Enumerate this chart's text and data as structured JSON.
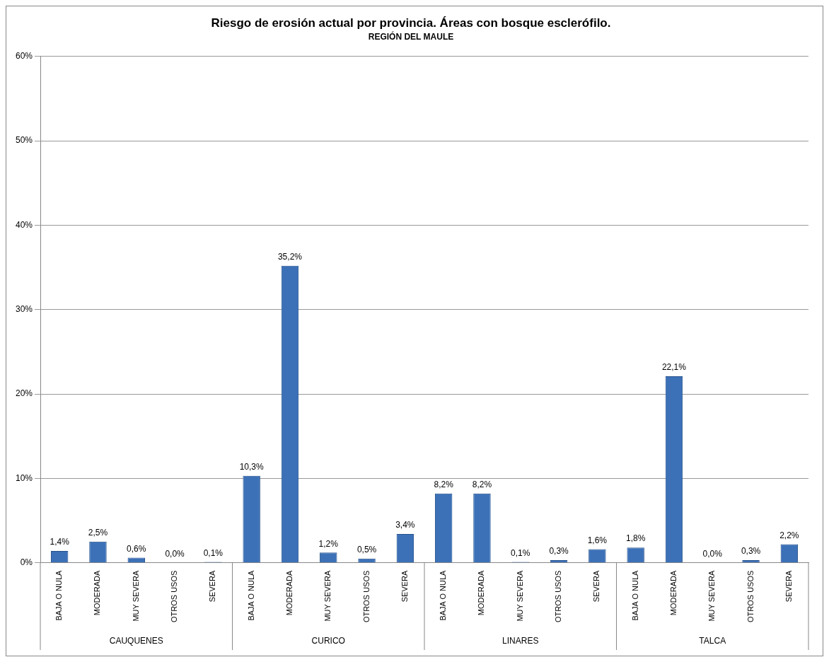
{
  "chart_data": {
    "type": "bar",
    "title": "Riesgo de erosión actual por provincia. Áreas con bosque esclerófilo.",
    "subtitle": "REGIÓN DEL MAULE",
    "categories": [
      "BAJA O NULA",
      "MODERADA",
      "MUY SEVERA",
      "OTROS USOS",
      "SEVERA",
      "BAJA O NULA",
      "MODERADA",
      "MUY SEVERA",
      "OTROS USOS",
      "SEVERA",
      "BAJA O NULA",
      "MODERADA",
      "MUY SEVERA",
      "OTROS USOS",
      "SEVERA",
      "BAJA O NULA",
      "MODERADA",
      "MUY SEVERA",
      "OTROS USOS",
      "SEVERA"
    ],
    "values": [
      1.4,
      2.5,
      0.6,
      0.0,
      0.1,
      10.3,
      35.2,
      1.2,
      0.5,
      3.4,
      8.2,
      8.2,
      0.1,
      0.3,
      1.6,
      1.8,
      22.1,
      0.0,
      0.3,
      2.2
    ],
    "value_labels": [
      "1,4%",
      "2,5%",
      "0,6%",
      "0,0%",
      "0,1%",
      "10,3%",
      "35,2%",
      "1,2%",
      "0,5%",
      "3,4%",
      "8,2%",
      "8,2%",
      "0,1%",
      "0,3%",
      "1,6%",
      "1,8%",
      "22,1%",
      "0,0%",
      "0,3%",
      "2,2%"
    ],
    "color": "#3c71b8",
    "annotations": [
      "CAUQUENES",
      "CURICO",
      "LINARES",
      "TALCA"
    ],
    "ylim": [
      0,
      60
    ],
    "yticks": [
      {
        "value": 0,
        "label": "0%"
      },
      {
        "value": 10,
        "label": "10%"
      },
      {
        "value": 20,
        "label": "20%"
      },
      {
        "value": 30,
        "label": "30%"
      },
      {
        "value": 40,
        "label": "40%"
      },
      {
        "value": 50,
        "label": "50%"
      },
      {
        "value": 60,
        "label": "60%"
      }
    ],
    "grid": "y",
    "legend": false
  }
}
